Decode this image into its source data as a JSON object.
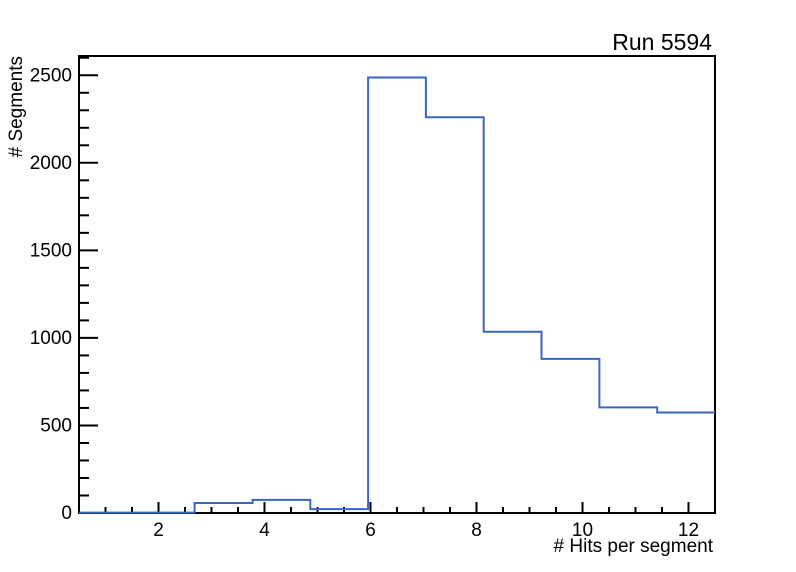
{
  "chart_data": {
    "type": "bar",
    "subtype": "step-histogram",
    "title": "Run 5594",
    "xlabel": "# Hits per segment",
    "ylabel": "# Segments",
    "xlim": [
      0.5,
      12.5
    ],
    "ylim": [
      0,
      2610
    ],
    "grid": false,
    "legend": "none",
    "bin_edges": [
      0.5,
      1.591,
      2.682,
      3.773,
      4.864,
      5.955,
      7.045,
      8.136,
      9.227,
      10.318,
      11.409,
      12.5
    ],
    "values": [
      2,
      2,
      57,
      75,
      22,
      2487,
      2260,
      1035,
      880,
      603,
      574
    ],
    "x_ticks": {
      "major_values": [
        2,
        4,
        6,
        8,
        10,
        12
      ],
      "major_labels": [
        "2",
        "4",
        "6",
        "8",
        "10",
        "12"
      ],
      "minor_step": 0.5
    },
    "y_ticks": {
      "major_values": [
        0,
        500,
        1000,
        1500,
        2000,
        2500
      ],
      "major_labels": [
        "0",
        "500",
        "1000",
        "1500",
        "2000",
        "2500"
      ],
      "minor_step": 100
    },
    "colors": {
      "line": "#3B66C0",
      "axis": "#000000",
      "text": "#000000",
      "background": "#FFFFFF"
    }
  }
}
